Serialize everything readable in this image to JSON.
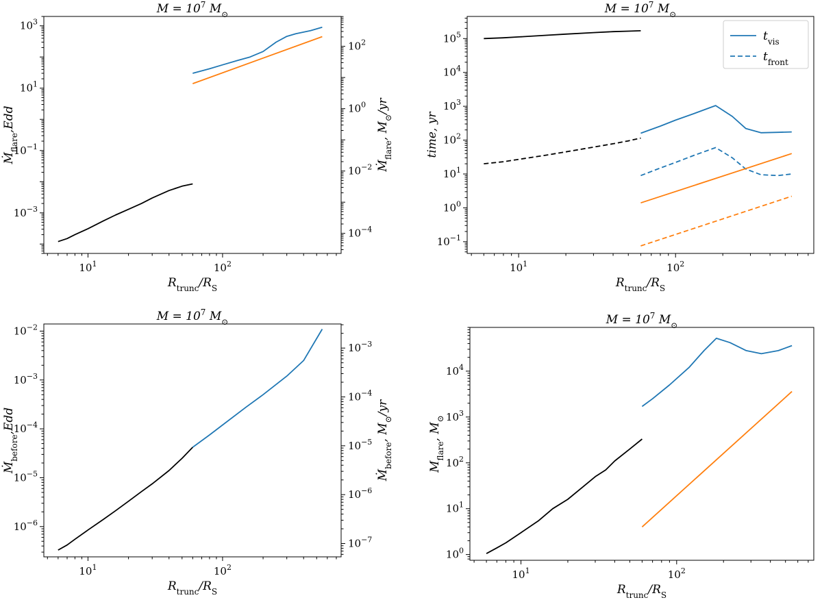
{
  "colors": {
    "black": "#000000",
    "blue": "#1f77b4",
    "orange": "#ff7f0e"
  },
  "chart_data": [
    {
      "id": "tl",
      "type": "line",
      "scale": "log-log",
      "title": "M = 10^7 M_⊙",
      "xlabel": "R_trunc/R_S",
      "ylabel": "Ṁ_flare,Edd",
      "ylabel_right": "Ṁ_flare, M_⊙/yr",
      "xlim": [
        4.7,
        760
      ],
      "ylim": [
        5e-05,
        2000
      ],
      "x_ticks": [
        {
          "v": 10,
          "label": "10^1"
        },
        {
          "v": 100,
          "label": "10^2"
        }
      ],
      "y_ticks": [
        {
          "v": 0.001,
          "label": "10^-3"
        },
        {
          "v": 0.1,
          "label": "10^-1"
        },
        {
          "v": 10,
          "label": "10^1"
        },
        {
          "v": 1000,
          "label": "10^3"
        }
      ],
      "y2_ticks": [
        {
          "v": 0.00022,
          "label": "10^-4"
        },
        {
          "v": 0.022,
          "label": "10^-2"
        },
        {
          "v": 2.2,
          "label": "10^0"
        },
        {
          "v": 220,
          "label": "10^2"
        }
      ],
      "series": [
        {
          "name": "black",
          "color": "black",
          "dash": false,
          "x": [
            6,
            7,
            8,
            10,
            13,
            16,
            20,
            25,
            30,
            40,
            50,
            60
          ],
          "y": [
            0.00012,
            0.00015,
            0.0002,
            0.00031,
            0.00055,
            0.00085,
            0.0013,
            0.002,
            0.003,
            0.0052,
            0.0072,
            0.0085
          ]
        },
        {
          "name": "blue",
          "color": "blue",
          "dash": false,
          "x": [
            60,
            80,
            100,
            130,
            160,
            200,
            250,
            300,
            350,
            450,
            550
          ],
          "y": [
            30,
            42,
            56,
            78,
            100,
            150,
            300,
            460,
            560,
            700,
            900
          ]
        },
        {
          "name": "orange",
          "color": "orange",
          "dash": false,
          "x": [
            60,
            550
          ],
          "y": [
            14,
            450
          ]
        }
      ]
    },
    {
      "id": "tr",
      "type": "line",
      "scale": "log-log",
      "title": "M = 10^7 M_⊙",
      "xlabel": "R_trunc/R_S",
      "ylabel": "time, yr",
      "xlim": [
        4.7,
        760
      ],
      "ylim": [
        0.045,
        450000
      ],
      "x_ticks": [
        {
          "v": 10,
          "label": "10^1"
        },
        {
          "v": 100,
          "label": "10^2"
        }
      ],
      "y_ticks": [
        {
          "v": 0.1,
          "label": "10^-1"
        },
        {
          "v": 1,
          "label": "10^0"
        },
        {
          "v": 10,
          "label": "10^1"
        },
        {
          "v": 100,
          "label": "10^2"
        },
        {
          "v": 1000,
          "label": "10^3"
        },
        {
          "v": 10000,
          "label": "10^4"
        },
        {
          "v": 100000,
          "label": "10^5"
        }
      ],
      "legend": [
        {
          "label": "t_vis",
          "dash": false
        },
        {
          "label": "t_front",
          "dash": true
        }
      ],
      "series": [
        {
          "name": "black-solid",
          "color": "black",
          "dash": false,
          "x": [
            6,
            8,
            10,
            15,
            20,
            30,
            40,
            50,
            60
          ],
          "y": [
            100000,
            105000,
            112000,
            125000,
            135000,
            150000,
            160000,
            165000,
            170000
          ]
        },
        {
          "name": "black-dashed",
          "color": "black",
          "dash": true,
          "x": [
            6,
            8,
            10,
            15,
            20,
            30,
            40,
            50,
            60
          ],
          "y": [
            20,
            23,
            27,
            36,
            45,
            62,
            78,
            95,
            115
          ]
        },
        {
          "name": "t_vis",
          "color": "blue",
          "dash": false,
          "x": [
            60,
            80,
            100,
            130,
            180,
            230,
            280,
            350,
            450,
            550
          ],
          "y": [
            160,
            260,
            390,
            600,
            1050,
            500,
            220,
            165,
            170,
            175
          ]
        },
        {
          "name": "t_front",
          "color": "blue",
          "dash": true,
          "x": [
            60,
            80,
            100,
            130,
            180,
            230,
            280,
            350,
            450,
            550
          ],
          "y": [
            9,
            15,
            22,
            35,
            60,
            30,
            14,
            9.5,
            9,
            10
          ]
        },
        {
          "name": "orange-solid",
          "color": "orange",
          "dash": false,
          "x": [
            60,
            550
          ],
          "y": [
            1.4,
            40
          ]
        },
        {
          "name": "orange-dashed",
          "color": "orange",
          "dash": true,
          "x": [
            60,
            550
          ],
          "y": [
            0.075,
            2.2
          ]
        }
      ]
    },
    {
      "id": "bl",
      "type": "line",
      "scale": "log-log",
      "title": "M = 10^7 M_⊙",
      "xlabel": "R_trunc/R_S",
      "ylabel": "Ṁ_before,Edd",
      "ylabel_right": "Ṁ_before, M_⊙/yr",
      "xlim": [
        4.7,
        760
      ],
      "ylim": [
        2.4e-07,
        0.014
      ],
      "x_ticks": [
        {
          "v": 10,
          "label": "10^1"
        },
        {
          "v": 100,
          "label": "10^2"
        }
      ],
      "y_ticks": [
        {
          "v": 1e-06,
          "label": "10^-6"
        },
        {
          "v": 1e-05,
          "label": "10^-5"
        },
        {
          "v": 0.0001,
          "label": "10^-4"
        },
        {
          "v": 0.001,
          "label": "10^-3"
        },
        {
          "v": 0.01,
          "label": "10^-2"
        }
      ],
      "y2_ticks": [
        {
          "v": 4.5e-07,
          "label": "10^-7"
        },
        {
          "v": 4.5e-06,
          "label": "10^-6"
        },
        {
          "v": 4.5e-05,
          "label": "10^-5"
        },
        {
          "v": 0.00045,
          "label": "10^-4"
        },
        {
          "v": 0.0045,
          "label": "10^-3"
        }
      ],
      "series": [
        {
          "name": "black",
          "color": "black",
          "dash": false,
          "x": [
            6,
            7,
            8,
            10,
            13,
            16,
            20,
            25,
            30,
            40,
            50,
            60
          ],
          "y": [
            3.3e-07,
            4.2e-07,
            5.5e-07,
            8.5e-07,
            1.4e-06,
            2.1e-06,
            3.3e-06,
            5.2e-06,
            7.5e-06,
            1.4e-05,
            2.5e-05,
            4.2e-05
          ]
        },
        {
          "name": "blue",
          "color": "blue",
          "dash": false,
          "x": [
            60,
            80,
            100,
            150,
            200,
            300,
            400,
            550
          ],
          "y": [
            4.2e-05,
            7.5e-05,
            0.00012,
            0.00028,
            0.0005,
            0.0012,
            0.0025,
            0.011
          ]
        }
      ]
    },
    {
      "id": "br",
      "type": "line",
      "scale": "log-log",
      "title": "M = 10^7 M_⊙",
      "xlabel": "R_trunc/R_S",
      "ylabel": "M_flare, M_⊙",
      "xlim": [
        4.7,
        760
      ],
      "ylim": [
        0.75,
        90000
      ],
      "x_ticks": [
        {
          "v": 10,
          "label": "10^1"
        },
        {
          "v": 100,
          "label": "10^2"
        }
      ],
      "y_ticks": [
        {
          "v": 1,
          "label": "10^0"
        },
        {
          "v": 10,
          "label": "10^1"
        },
        {
          "v": 100,
          "label": "10^2"
        },
        {
          "v": 1000,
          "label": "10^3"
        },
        {
          "v": 10000,
          "label": "10^4"
        }
      ],
      "series": [
        {
          "name": "black",
          "color": "black",
          "dash": false,
          "x": [
            6,
            7,
            8,
            10,
            13,
            16,
            20,
            25,
            30,
            35,
            40,
            50,
            60
          ],
          "y": [
            1.05,
            1.4,
            1.8,
            3,
            5.5,
            10,
            16,
            30,
            50,
            70,
            110,
            200,
            330
          ]
        },
        {
          "name": "blue",
          "color": "blue",
          "dash": false,
          "x": [
            60,
            70,
            90,
            120,
            150,
            180,
            220,
            280,
            350,
            450,
            550
          ],
          "y": [
            1700,
            2500,
            5000,
            12000,
            28000,
            52000,
            42000,
            28000,
            24000,
            28000,
            36000
          ]
        },
        {
          "name": "orange",
          "color": "orange",
          "dash": false,
          "x": [
            60,
            550
          ],
          "y": [
            4,
            3600
          ]
        }
      ]
    }
  ]
}
